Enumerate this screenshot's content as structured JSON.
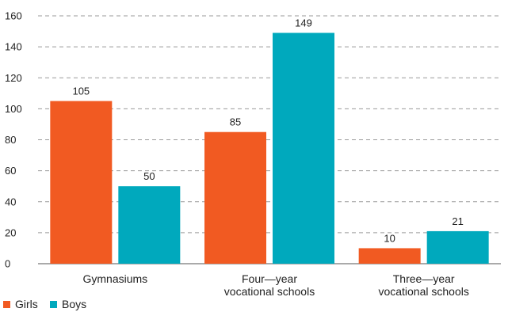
{
  "chart_data": {
    "type": "bar",
    "categories": [
      [
        "Gymnasiums"
      ],
      [
        "Four—year",
        "vocational schools"
      ],
      [
        "Three—year",
        "vocational schools"
      ]
    ],
    "series": [
      {
        "name": "Girls",
        "color": "#f15a22",
        "values": [
          105,
          85,
          10
        ]
      },
      {
        "name": "Boys",
        "color": "#00a9bd",
        "values": [
          50,
          149,
          21
        ]
      }
    ],
    "ylim": [
      0,
      160
    ],
    "yticks": [
      0,
      20,
      40,
      60,
      80,
      100,
      120,
      140,
      160
    ],
    "grid": "dashed horizontal",
    "legend": "bottom-left",
    "title": "",
    "xlabel": "",
    "ylabel": ""
  }
}
